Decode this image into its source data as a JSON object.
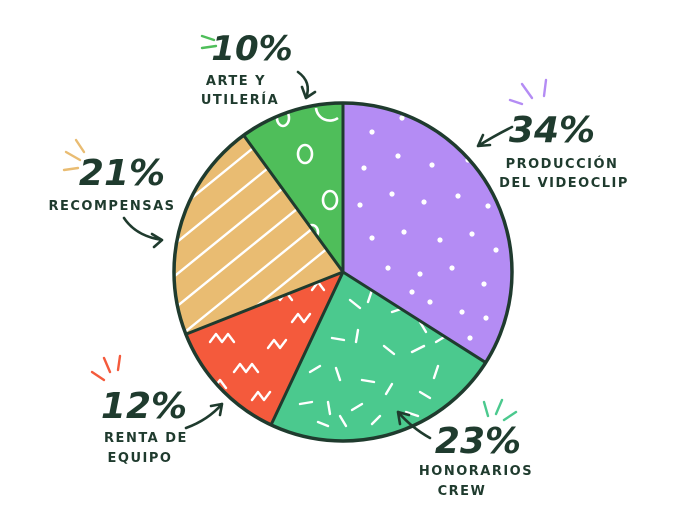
{
  "chart_data": {
    "type": "pie",
    "slices": [
      {
        "key": "produccion",
        "percent_label": "34%",
        "value": 34,
        "label_lines": [
          "PRODUCCIÓN",
          "DEL VIDEOCLIP"
        ],
        "color": "#b48cf4"
      },
      {
        "key": "honorarios",
        "percent_label": "23%",
        "value": 23,
        "label_lines": [
          "HONORARIOS",
          "CREW"
        ],
        "color": "#4bc98e"
      },
      {
        "key": "renta",
        "percent_label": "12%",
        "value": 12,
        "label_lines": [
          "RENTA DE",
          "EQUIPO"
        ],
        "color": "#f45a3c"
      },
      {
        "key": "recompensas",
        "percent_label": "21%",
        "value": 21,
        "label_lines": [
          "RECOMPENSAS"
        ],
        "color": "#e9bc72"
      },
      {
        "key": "arte",
        "percent_label": "10%",
        "value": 10,
        "label_lines": [
          "ARTE Y",
          "UTILERÍA"
        ],
        "color": "#4fbe5a"
      }
    ],
    "outline_color": "#1f3b2e",
    "legend": "none"
  }
}
